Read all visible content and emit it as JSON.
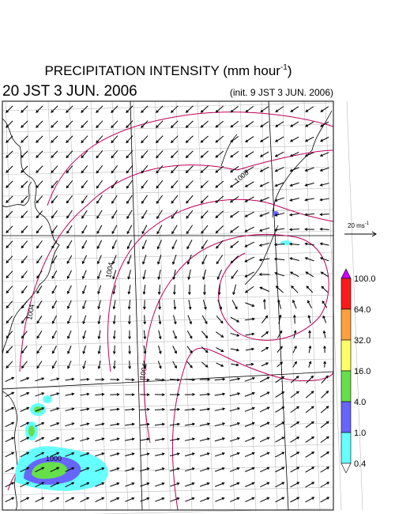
{
  "header": {
    "title": "PRECIPITATION INTENSITY (mm hour",
    "title_sup": "-1",
    "title_end": ")",
    "valid_time": "20 JST 3 JUN. 2006",
    "init_time": "(init. 9 JST 3 JUN. 2006)"
  },
  "wind_scale": {
    "label": "20 ms",
    "sup": "-1"
  },
  "contour_labels": [
    "1004",
    "1004",
    "1008",
    "1000",
    "1004"
  ],
  "colorbar": {
    "labels": [
      "100.0",
      "64.0",
      "32.0",
      "16.0",
      "4.0",
      "1.0",
      "0.4"
    ],
    "colors": [
      "#cc00ff",
      "#ff1a1a",
      "#ffa040",
      "#ffff66",
      "#66e04a",
      "#6666ff",
      "#66ffff",
      "#ffffff"
    ]
  }
}
